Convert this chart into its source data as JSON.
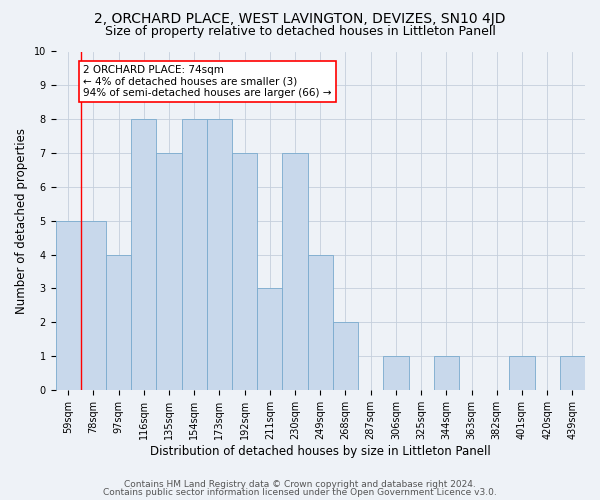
{
  "title": "2, ORCHARD PLACE, WEST LAVINGTON, DEVIZES, SN10 4JD",
  "subtitle": "Size of property relative to detached houses in Littleton Panell",
  "xlabel": "Distribution of detached houses by size in Littleton Panell",
  "ylabel": "Number of detached properties",
  "categories": [
    "59sqm",
    "78sqm",
    "97sqm",
    "116sqm",
    "135sqm",
    "154sqm",
    "173sqm",
    "192sqm",
    "211sqm",
    "230sqm",
    "249sqm",
    "268sqm",
    "287sqm",
    "306sqm",
    "325sqm",
    "344sqm",
    "363sqm",
    "382sqm",
    "401sqm",
    "420sqm",
    "439sqm"
  ],
  "values": [
    5,
    5,
    4,
    8,
    7,
    8,
    8,
    7,
    3,
    7,
    4,
    2,
    0,
    1,
    0,
    1,
    0,
    0,
    1,
    0,
    1
  ],
  "bar_color": "#c8d8eb",
  "bar_edge_color": "#7aaace",
  "red_line_index": 1,
  "annotation_text_line1": "2 ORCHARD PLACE: 74sqm",
  "annotation_text_line2": "← 4% of detached houses are smaller (3)",
  "annotation_text_line3": "94% of semi-detached houses are larger (66) →",
  "annotation_box_facecolor": "white",
  "annotation_box_edgecolor": "red",
  "ylim": [
    0,
    10
  ],
  "yticks": [
    0,
    1,
    2,
    3,
    4,
    5,
    6,
    7,
    8,
    9,
    10
  ],
  "footer1": "Contains HM Land Registry data © Crown copyright and database right 2024.",
  "footer2": "Contains public sector information licensed under the Open Government Licence v3.0.",
  "background_color": "#eef2f7",
  "grid_color": "#c5cfdc",
  "title_fontsize": 10,
  "subtitle_fontsize": 9,
  "axis_label_fontsize": 8.5,
  "tick_fontsize": 7,
  "annotation_fontsize": 7.5,
  "footer_fontsize": 6.5
}
